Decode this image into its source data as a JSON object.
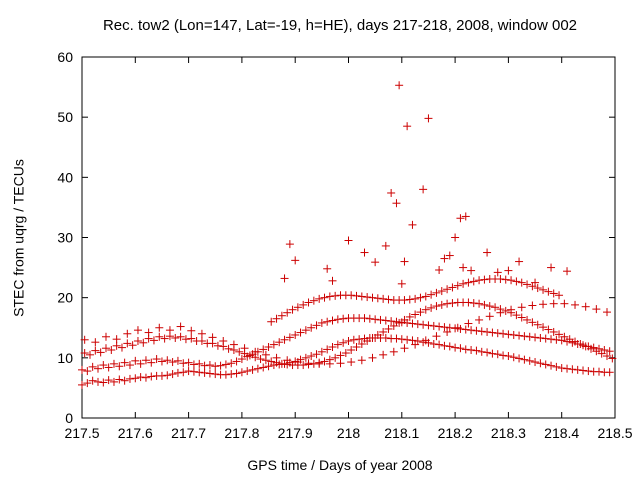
{
  "chart_data": {
    "type": "scatter",
    "title": "Rec. tow2 (Lon=147, Lat=-19, h=HE), days 217-218, 2008, window 002",
    "xlabel": "GPS time / Days of year 2008",
    "ylabel": "STEC from uqrg / TECUs",
    "xlim": [
      217.5,
      218.5
    ],
    "ylim": [
      0,
      60
    ],
    "xticks": [
      217.5,
      217.6,
      217.7,
      217.8,
      217.9,
      218,
      218.1,
      218.2,
      218.3,
      218.4,
      218.5
    ],
    "xtick_labels": [
      "217.5",
      "217.6",
      "217.7",
      "217.8",
      "217.9",
      "218",
      "218.1",
      "218.2",
      "218.3",
      "218.4",
      "218.5"
    ],
    "yticks": [
      0,
      10,
      20,
      30,
      40,
      50,
      60
    ],
    "ytick_labels": [
      "0",
      "10",
      "20",
      "30",
      "40",
      "50",
      "60"
    ],
    "grid": false,
    "marker": "plus",
    "marker_color": "#cc0000",
    "series": [
      {
        "x": [
          217.5,
          217.51,
          217.52,
          217.53,
          217.54,
          217.55,
          217.56,
          217.57,
          217.58,
          217.59,
          217.6,
          217.61,
          217.62,
          217.63,
          217.64,
          217.65,
          217.66,
          217.67,
          217.68,
          217.69,
          217.7,
          217.71,
          217.72,
          217.73,
          217.74,
          217.75,
          217.76,
          217.77,
          217.78,
          217.79,
          217.8,
          217.81,
          217.82,
          217.83,
          217.84,
          217.85,
          217.86,
          217.87,
          217.88,
          217.89,
          217.9,
          217.91,
          217.92,
          217.93,
          217.94,
          217.95,
          217.96,
          217.97,
          217.98,
          217.99,
          218.0,
          218.01,
          218.02,
          218.03,
          218.04,
          218.05,
          218.06,
          218.07,
          218.08,
          218.09,
          218.1,
          218.11,
          218.12,
          218.13,
          218.14,
          218.15,
          218.16,
          218.17,
          218.18,
          218.19,
          218.2,
          218.21,
          218.22,
          218.23,
          218.24,
          218.25,
          218.26,
          218.27,
          218.28,
          218.29,
          218.3,
          218.31,
          218.32,
          218.33,
          218.34,
          218.35,
          218.36,
          218.37,
          218.38,
          218.39,
          218.4,
          218.41,
          218.42,
          218.43,
          218.44,
          218.45,
          218.46,
          218.47,
          218.48,
          218.49,
          217.5,
          217.51,
          217.52,
          217.53,
          217.54,
          217.55,
          217.56,
          217.57,
          217.58,
          217.59,
          217.6,
          217.61,
          217.62,
          217.63,
          217.64,
          217.65,
          217.66,
          217.67,
          217.68,
          217.69,
          217.7,
          217.71,
          217.72,
          217.73,
          217.74,
          217.75,
          217.76,
          217.77,
          217.78,
          217.79,
          217.8,
          217.81,
          217.82,
          217.83,
          217.84,
          217.85,
          217.86,
          217.87,
          217.88,
          217.89,
          217.9,
          217.91,
          217.92,
          217.93,
          217.94,
          217.95,
          217.96,
          217.97,
          217.98,
          217.99,
          218.0,
          218.01,
          218.02,
          218.03,
          218.04,
          218.05,
          218.06,
          218.07,
          218.08,
          218.09,
          218.1,
          218.11,
          218.12,
          218.13,
          218.14,
          218.15,
          218.16,
          218.17,
          218.18,
          218.19,
          218.2,
          218.21,
          218.22,
          218.23,
          218.24,
          218.25,
          218.26,
          218.27,
          218.28,
          218.29,
          218.3,
          218.31,
          218.32,
          218.33,
          218.34,
          218.35,
          218.36,
          218.37,
          218.38,
          218.39,
          218.4,
          218.41,
          218.42,
          218.43,
          218.44,
          218.45,
          218.46,
          218.47,
          218.48,
          218.49,
          217.505,
          217.515,
          217.525,
          217.535,
          217.545,
          217.555,
          217.565,
          217.575,
          217.585,
          217.595,
          217.605,
          217.615,
          217.625,
          217.635,
          217.645,
          217.655,
          217.665,
          217.675,
          217.685,
          217.695,
          217.705,
          217.715,
          217.725,
          217.735,
          217.745,
          217.755,
          217.765,
          217.775,
          217.785,
          217.795,
          217.805,
          217.815,
          217.825,
          217.835,
          217.845,
          217.855,
          217.865,
          217.875,
          217.885,
          217.895,
          217.905,
          217.915,
          217.925,
          217.935,
          217.945,
          217.955,
          217.965,
          217.975,
          217.985,
          217.995,
          218.005,
          218.015,
          218.025,
          218.035,
          218.045,
          218.055,
          218.065,
          218.075,
          218.085,
          218.095,
          218.105,
          218.115,
          218.125,
          218.135,
          218.145,
          218.155,
          218.165,
          218.175,
          218.185,
          218.195,
          218.205,
          218.215,
          218.225,
          218.235,
          218.245,
          218.255,
          218.265,
          218.275,
          218.285,
          218.295,
          218.305,
          218.315,
          218.325,
          218.335,
          218.345,
          218.355,
          218.365,
          218.375,
          218.385,
          218.395,
          218.405,
          218.415,
          218.425,
          218.435,
          218.445,
          218.455,
          218.465,
          218.475,
          218.485,
          218.495,
          217.505,
          217.525,
          217.545,
          217.565,
          217.585,
          217.605,
          217.625,
          217.645,
          217.665,
          217.685,
          217.705,
          217.725,
          217.745,
          217.765,
          217.785,
          217.805,
          217.825,
          217.845,
          217.865,
          217.885,
          217.905,
          217.925,
          217.945,
          217.965,
          217.985,
          218.005,
          218.025,
          218.045,
          218.065,
          218.085,
          218.105,
          218.125,
          218.145,
          218.165,
          218.185,
          218.205,
          218.225,
          218.245,
          218.265,
          218.285,
          218.305,
          218.325,
          218.345,
          218.365,
          218.385,
          218.405,
          218.425,
          218.445,
          218.465,
          218.485,
          217.855,
          217.865,
          217.875,
          217.885,
          217.895,
          217.905,
          217.915,
          217.925,
          217.935,
          217.945,
          217.955,
          217.965,
          217.975,
          217.985,
          217.995,
          218.005,
          218.015,
          218.025,
          218.035,
          218.045,
          218.055,
          218.065,
          218.075,
          218.085,
          218.095,
          218.105,
          218.115,
          218.125,
          218.135,
          218.145,
          218.155,
          218.165,
          218.175,
          218.185,
          218.195,
          218.205,
          218.215,
          218.225,
          218.235,
          218.245,
          218.255,
          218.265,
          218.275,
          218.285,
          218.295,
          218.305,
          218.315,
          218.325,
          218.335,
          218.345,
          218.355,
          218.365,
          218.375,
          218.385,
          218.395,
          217.88,
          217.89,
          217.9,
          217.96,
          217.97,
          218.0,
          218.03,
          218.05,
          218.07,
          218.08,
          218.09,
          218.095,
          218.1,
          218.105,
          218.11,
          218.12,
          218.14,
          218.15,
          218.17,
          218.18,
          218.19,
          218.2,
          218.21,
          218.215,
          218.22,
          218.23,
          218.26,
          218.28,
          218.3,
          218.32,
          218.35,
          218.38,
          218.41
        ],
        "y": [
          5.5,
          5.8,
          6.2,
          6.0,
          5.9,
          6.3,
          6.0,
          6.4,
          6.2,
          6.5,
          6.6,
          6.8,
          6.7,
          6.9,
          7.0,
          7.0,
          7.1,
          7.3,
          7.5,
          7.6,
          7.8,
          7.7,
          7.6,
          7.5,
          7.4,
          7.3,
          7.2,
          7.2,
          7.3,
          7.4,
          7.6,
          7.8,
          8.0,
          8.2,
          8.4,
          8.6,
          8.8,
          8.9,
          9.0,
          9.2,
          9.4,
          9.7,
          10.0,
          10.3,
          10.6,
          11.0,
          11.4,
          11.8,
          12.2,
          12.5,
          12.8,
          13.0,
          13.1,
          13.2,
          13.3,
          13.3,
          13.3,
          13.3,
          13.2,
          13.2,
          13.1,
          13.0,
          12.9,
          12.8,
          12.6,
          12.5,
          12.3,
          12.2,
          12.0,
          11.9,
          11.7,
          11.6,
          11.4,
          11.3,
          11.2,
          11.0,
          10.9,
          10.7,
          10.6,
          10.4,
          10.3,
          10.1,
          9.9,
          9.7,
          9.5,
          9.3,
          9.1,
          8.9,
          8.7,
          8.5,
          8.3,
          8.2,
          8.1,
          8.0,
          7.9,
          7.8,
          7.7,
          7.7,
          7.6,
          7.6,
          8.0,
          7.8,
          8.5,
          8.2,
          8.8,
          8.4,
          9.0,
          8.6,
          9.2,
          8.8,
          9.5,
          9.0,
          9.6,
          9.2,
          9.8,
          9.4,
          9.6,
          9.3,
          9.5,
          9.1,
          9.2,
          8.9,
          9.0,
          8.7,
          8.8,
          8.6,
          8.7,
          8.9,
          9.1,
          9.4,
          9.8,
          10.2,
          10.6,
          11.0,
          11.4,
          11.8,
          12.2,
          12.6,
          13.0,
          13.4,
          13.8,
          14.2,
          14.6,
          15.0,
          15.4,
          15.8,
          16.0,
          16.2,
          16.4,
          16.5,
          16.6,
          16.6,
          16.6,
          16.6,
          16.5,
          16.4,
          16.3,
          16.2,
          16.1,
          16.0,
          15.9,
          15.8,
          15.7,
          15.6,
          15.5,
          15.4,
          15.3,
          15.2,
          15.1,
          15.0,
          14.9,
          14.8,
          14.7,
          14.6,
          14.5,
          14.4,
          14.3,
          14.2,
          14.1,
          14.0,
          13.9,
          13.8,
          13.7,
          13.6,
          13.5,
          13.4,
          13.3,
          13.2,
          13.1,
          13.0,
          12.9,
          12.7,
          12.5,
          12.3,
          12.1,
          11.9,
          11.7,
          11.5,
          11.3,
          11.1,
          10.8,
          10.5,
          11.2,
          10.9,
          11.6,
          11.3,
          12.0,
          11.7,
          12.4,
          12.1,
          12.8,
          12.5,
          13.2,
          12.9,
          13.5,
          13.2,
          13.6,
          13.3,
          13.5,
          13.1,
          13.2,
          12.8,
          12.8,
          12.4,
          12.4,
          12.0,
          11.9,
          11.5,
          11.3,
          11.0,
          10.7,
          10.4,
          10.1,
          9.8,
          9.6,
          9.4,
          9.2,
          9.0,
          8.9,
          8.8,
          8.8,
          8.8,
          8.9,
          9.0,
          9.2,
          9.4,
          9.7,
          10.0,
          10.4,
          10.8,
          11.3,
          11.8,
          12.3,
          12.8,
          13.3,
          13.8,
          14.3,
          14.8,
          15.3,
          15.8,
          16.3,
          16.8,
          17.2,
          17.6,
          18.0,
          18.3,
          18.6,
          18.8,
          19.0,
          19.1,
          19.2,
          19.2,
          19.2,
          19.1,
          19.0,
          18.8,
          18.6,
          18.4,
          18.1,
          17.8,
          17.5,
          17.1,
          16.7,
          16.3,
          15.9,
          15.5,
          15.1,
          14.7,
          14.3,
          13.9,
          13.5,
          13.1,
          12.7,
          12.3,
          11.9,
          11.5,
          11.1,
          10.7,
          10.3,
          9.9,
          13.0,
          12.6,
          13.5,
          13.1,
          14.0,
          14.6,
          14.2,
          15.0,
          14.6,
          15.2,
          14.5,
          14.0,
          13.4,
          12.8,
          12.2,
          11.6,
          11.0,
          10.5,
          10.0,
          9.6,
          9.3,
          9.1,
          9.0,
          9.0,
          9.1,
          9.3,
          9.6,
          10.0,
          10.5,
          11.0,
          11.6,
          12.2,
          12.9,
          13.6,
          14.3,
          15.0,
          15.7,
          16.3,
          16.9,
          17.5,
          18.0,
          18.4,
          18.7,
          18.9,
          19.0,
          19.0,
          18.8,
          18.5,
          18.1,
          17.6,
          16.0,
          16.5,
          17.0,
          17.5,
          18.0,
          18.4,
          18.8,
          19.2,
          19.5,
          19.8,
          20.0,
          20.2,
          20.3,
          20.4,
          20.4,
          20.4,
          20.3,
          20.2,
          20.1,
          20.0,
          19.9,
          19.8,
          19.7,
          19.6,
          19.6,
          19.6,
          19.7,
          19.8,
          20.0,
          20.2,
          20.5,
          20.8,
          21.1,
          21.4,
          21.7,
          22.0,
          22.3,
          22.5,
          22.7,
          22.9,
          23.0,
          23.1,
          23.1,
          23.1,
          23.0,
          22.9,
          22.7,
          22.5,
          22.2,
          21.9,
          21.6,
          21.3,
          21.0,
          20.7,
          20.4,
          23.2,
          28.9,
          26.2,
          24.8,
          22.8,
          29.5,
          27.5,
          25.9,
          28.6,
          37.4,
          35.7,
          55.3,
          22.3,
          26.0,
          48.5,
          32.1,
          38.0,
          49.8,
          24.6,
          26.5,
          27.0,
          30.0,
          33.2,
          25.0,
          33.5,
          24.5,
          27.5,
          24.2,
          24.5,
          26.0,
          22.5,
          25.0,
          24.4
        ]
      }
    ]
  }
}
